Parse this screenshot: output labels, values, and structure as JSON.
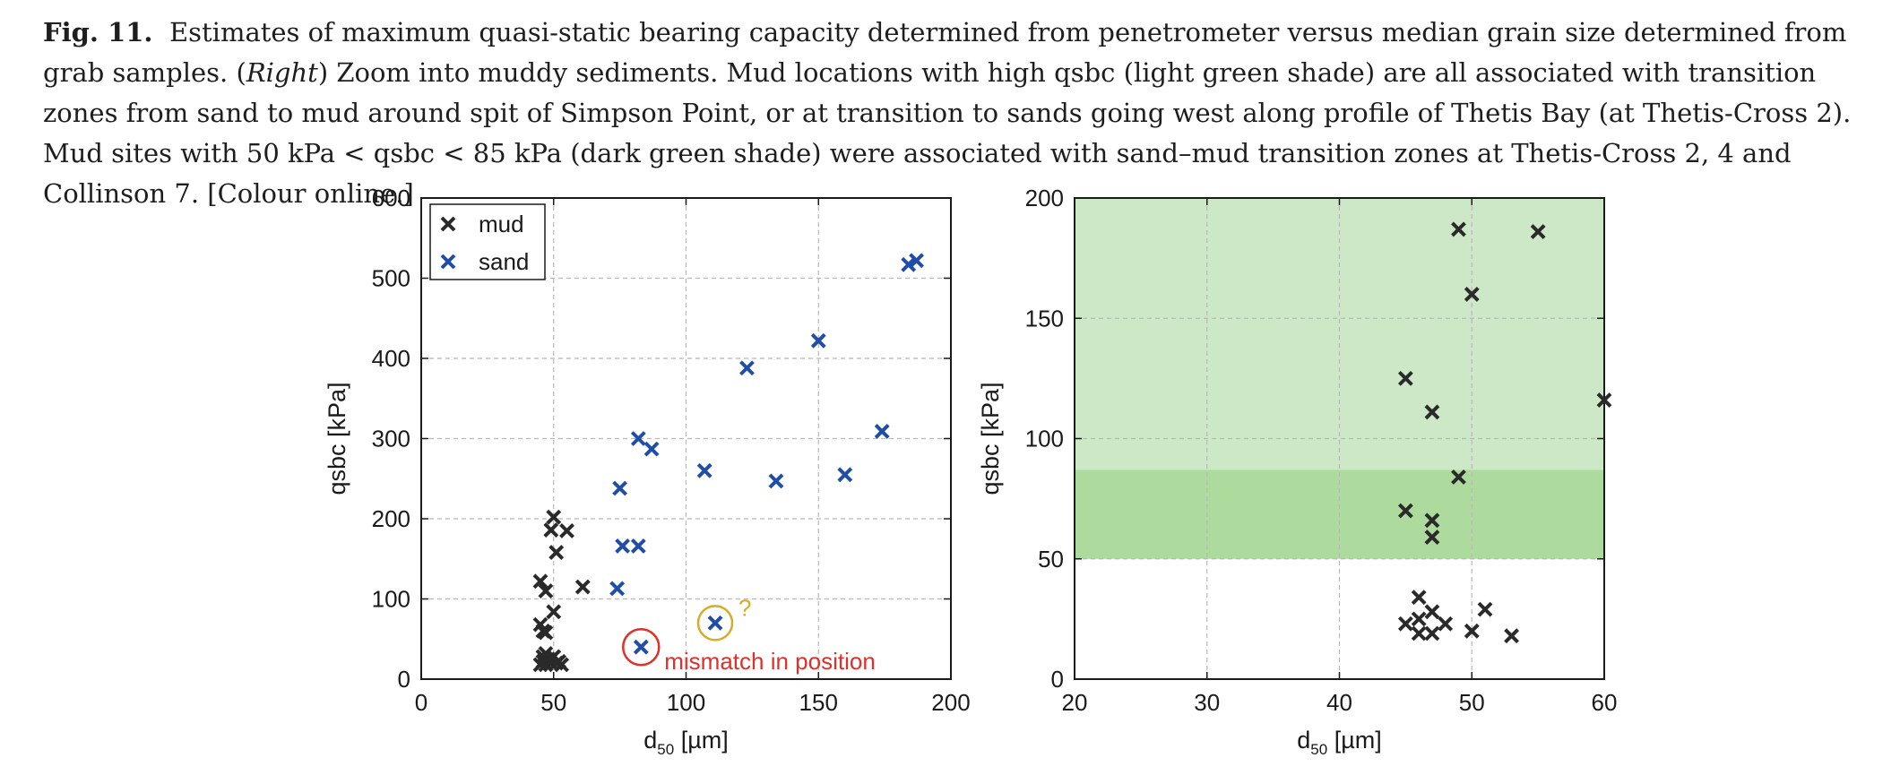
{
  "caption": {
    "label": "Fig. 11.",
    "part1": "Estimates of maximum quasi-static bearing capacity determined from penetrometer versus median grain size determined from grab samples. (",
    "right_word": "Right",
    "part2": ") Zoom into muddy sediments. Mud locations with high qsbc (light green shade) are all associated with transition zones from sand to mud around spit of Simpson Point, or at transition to sands going west along profile of Thetis Bay (at Thetis-Cross 2). Mud sites with 50 kPa < qsbc < 85 kPa (dark green shade) were associated with sand–mud transition zones at Thetis-Cross 2, 4 and Collinson 7. [Colour online.]"
  },
  "colors": {
    "mud": "#2a2a2a",
    "sand": "#1f4ea8",
    "light_green": "#cde8c6",
    "dark_green": "#acdb9d",
    "mismatch_circle": "#e0302a",
    "question_circle": "#d6ac2a"
  },
  "chart_data": [
    {
      "type": "scatter",
      "xlabel_main": "d",
      "xlabel_sub": "50",
      "xlabel_unit": " [µm]",
      "ylabel": "qsbc [kPa]",
      "xlim": [
        0,
        200
      ],
      "ylim": [
        0,
        600
      ],
      "xticks": [
        0,
        50,
        100,
        150,
        200
      ],
      "yticks": [
        0,
        100,
        200,
        300,
        400,
        500,
        600
      ],
      "grid": true,
      "legend_position": "top-left",
      "series": [
        {
          "name": "mud",
          "marker": "x",
          "points": [
            [
              45,
              18
            ],
            [
              46,
              22
            ],
            [
              46,
              28
            ],
            [
              47,
              32
            ],
            [
              48,
              25
            ],
            [
              49,
              20
            ],
            [
              50,
              28
            ],
            [
              52,
              22
            ],
            [
              53,
              18
            ],
            [
              47,
              18
            ],
            [
              49,
              25
            ],
            [
              51,
              20
            ],
            [
              45,
              68
            ],
            [
              46,
              60
            ],
            [
              47,
              58
            ],
            [
              50,
              84
            ],
            [
              45,
              122
            ],
            [
              47,
              110
            ],
            [
              51,
              158
            ],
            [
              49,
              186
            ],
            [
              50,
              202
            ],
            [
              55,
              185
            ],
            [
              61,
              115
            ]
          ]
        },
        {
          "name": "sand",
          "marker": "x",
          "points": [
            [
              74,
              113
            ],
            [
              75,
              238
            ],
            [
              76,
              166
            ],
            [
              82,
              166
            ],
            [
              82,
              300
            ],
            [
              87,
              287
            ],
            [
              107,
              260
            ],
            [
              123,
              388
            ],
            [
              134,
              247
            ],
            [
              150,
              422
            ],
            [
              160,
              255
            ],
            [
              174,
              309
            ],
            [
              184,
              517
            ],
            [
              187,
              522
            ],
            [
              83,
              40
            ],
            [
              111,
              70
            ]
          ]
        }
      ],
      "annotations": [
        {
          "text": "mismatch in position",
          "x": 83,
          "y": 40
        },
        {
          "text": "?",
          "x": 111,
          "y": 70
        }
      ]
    },
    {
      "type": "scatter",
      "xlabel_main": "d",
      "xlabel_sub": "50",
      "xlabel_unit": " [µm]",
      "ylabel": "qsbc [kPa]",
      "xlim": [
        20,
        60
      ],
      "ylim": [
        0,
        200
      ],
      "xticks": [
        20,
        30,
        40,
        50,
        60
      ],
      "yticks": [
        0,
        50,
        100,
        150,
        200
      ],
      "grid": true,
      "shaded_bands": [
        {
          "shade": "light green",
          "y_from": 87,
          "y_to": 200
        },
        {
          "shade": "dark green",
          "y_from": 50,
          "y_to": 87
        }
      ],
      "series": [
        {
          "name": "mud",
          "marker": "x",
          "points": [
            [
              49,
              187
            ],
            [
              55,
              186
            ],
            [
              50,
              160
            ],
            [
              45,
              125
            ],
            [
              47,
              111
            ],
            [
              60,
              116
            ],
            [
              49,
              84
            ],
            [
              45,
              70
            ],
            [
              47,
              66
            ],
            [
              47,
              59
            ],
            [
              45,
              23
            ],
            [
              46,
              34
            ],
            [
              46,
              25
            ],
            [
              46,
              19
            ],
            [
              47,
              28
            ],
            [
              47,
              19
            ],
            [
              48,
              23
            ],
            [
              50,
              20
            ],
            [
              51,
              29
            ],
            [
              53,
              18
            ]
          ]
        }
      ]
    }
  ]
}
